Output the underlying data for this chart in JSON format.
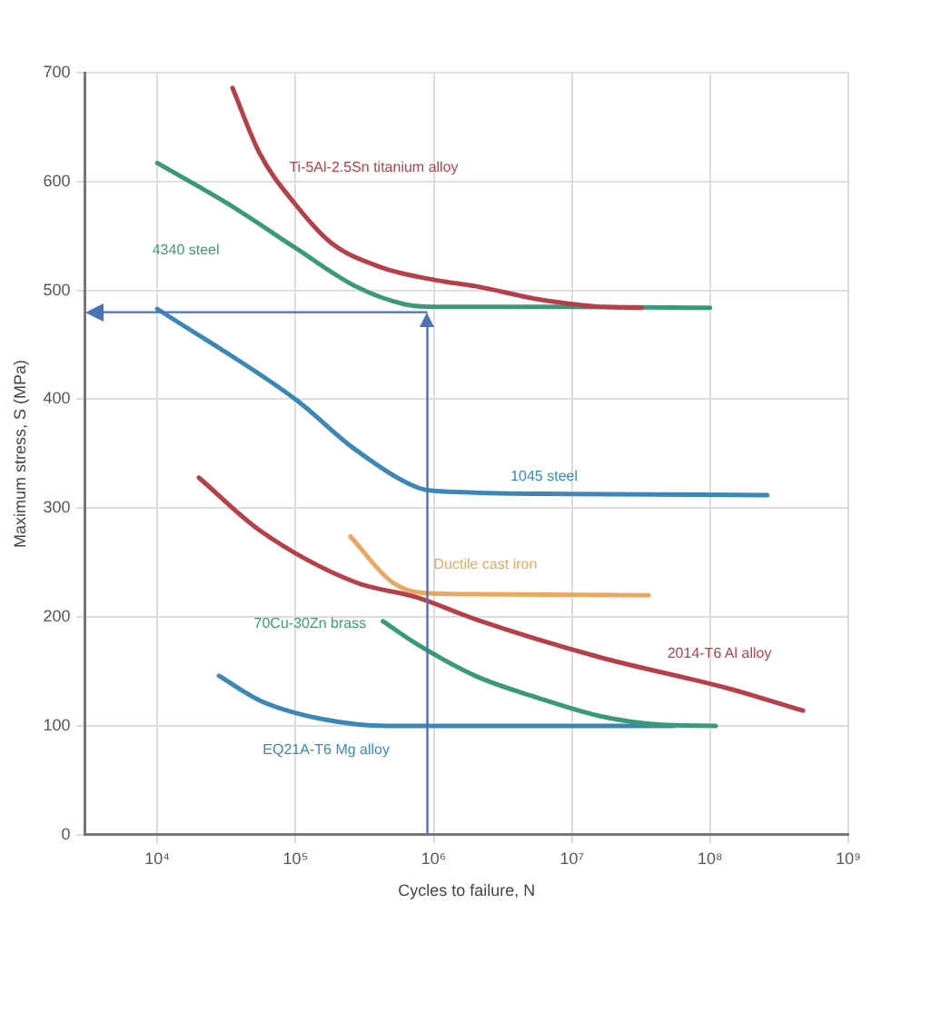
{
  "chart_data": {
    "type": "line",
    "xlabel": "Cycles to failure, N",
    "ylabel": "Maximum stress, S (MPa)",
    "log": "x",
    "xlim": [
      3000,
      1000000000
    ],
    "xticks": [
      {
        "value": 10000,
        "label": "10⁴"
      },
      {
        "value": 100000,
        "label": "10⁵"
      },
      {
        "value": 1000000,
        "label": "10⁶"
      },
      {
        "value": 10000000,
        "label": "10⁷"
      },
      {
        "value": 100000000,
        "label": "10⁸"
      },
      {
        "value": 1000000000,
        "label": "10⁹"
      }
    ],
    "ylim": [
      0,
      700
    ],
    "yticks": [
      0,
      100,
      200,
      300,
      400,
      500,
      600,
      700
    ],
    "grid": true,
    "legend": false,
    "marker": "none",
    "line_style": "solid",
    "series": [
      {
        "name": "Ti-5Al-2.5Sn titanium alloy",
        "color": "#b5404a",
        "x": [
          35000,
          55000,
          100000,
          180000,
          400000,
          1200000,
          2000000,
          5600000,
          16000000,
          32000000
        ],
        "values": [
          686,
          626,
          579,
          544,
          522,
          508,
          504,
          492,
          485,
          484
        ]
      },
      {
        "name": "4340 steel",
        "color": "#3a9a78",
        "x": [
          10000,
          33000,
          100000,
          270000,
          630000,
          1000000,
          10000000,
          100000000
        ],
        "values": [
          617,
          579,
          539,
          504,
          487,
          485,
          485,
          484
        ]
      },
      {
        "name": "1045 steel",
        "color": "#3b88b8",
        "x": [
          10000,
          100000,
          270000,
          760000,
          1000000,
          10000000,
          260000000
        ],
        "values": [
          483,
          400,
          354,
          319,
          316,
          313,
          312
        ]
      },
      {
        "name": "Ductile cast iron",
        "color": "#e8a860",
        "x": [
          250000,
          500000,
          850000,
          2000000,
          36000000
        ],
        "values": [
          274,
          232,
          222,
          221,
          220
        ]
      },
      {
        "name": "2014-T6 Al alloy",
        "color": "#b5404a",
        "x": [
          20000,
          56000,
          270000,
          760000,
          2000000,
          16000000,
          130000000,
          470000000
        ],
        "values": [
          328,
          279,
          232,
          218,
          198,
          163,
          135,
          114
        ]
      },
      {
        "name": "70Cu-30Zn brass",
        "color": "#3a9a78",
        "x": [
          430000,
          760000,
          2000000,
          5600000,
          16000000,
          45000000,
          110000000
        ],
        "values": [
          196,
          175,
          146,
          126,
          109,
          101,
          100
        ]
      },
      {
        "name": "EQ21A-T6 Mg alloy",
        "color": "#3b88b8",
        "x": [
          28000,
          56000,
          160000,
          460000,
          1000000,
          55000000
        ],
        "values": [
          146,
          123,
          106,
          100,
          100,
          100
        ]
      }
    ],
    "ref_lines": [
      {
        "axis": "x",
        "value": 900000,
        "color": "#4a72b8"
      },
      {
        "axis": "y",
        "value": 480,
        "color": "#4a72b8"
      }
    ]
  }
}
